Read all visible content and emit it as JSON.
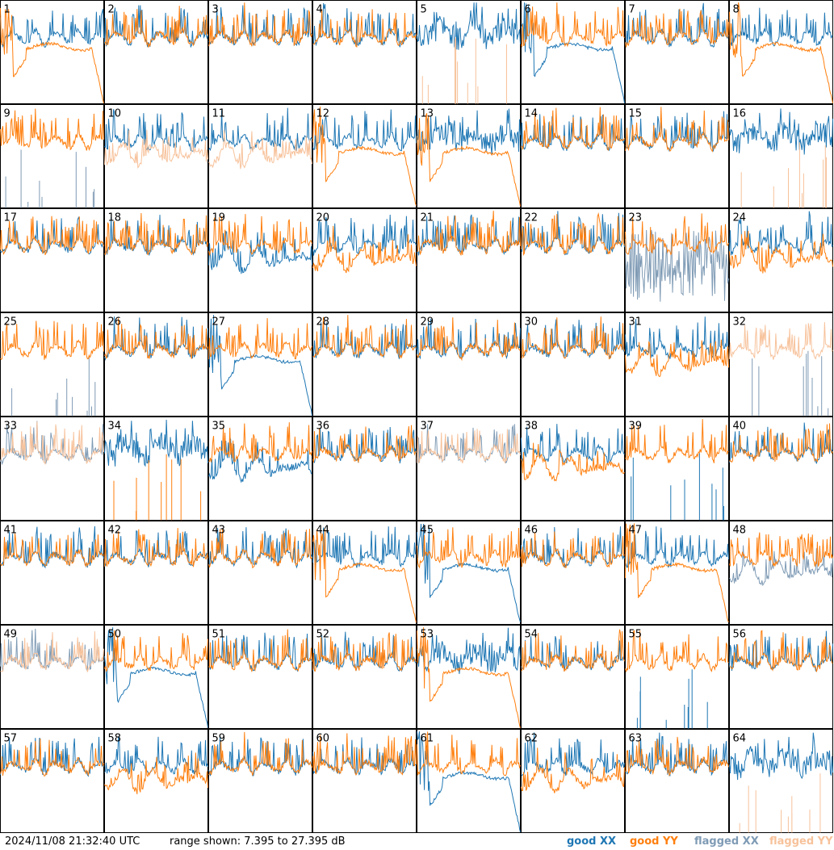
{
  "timestamp": "2024/11/08 21:32:40 UTC",
  "range_text": "range shown: 7.395 to 27.395 dB",
  "legend": {
    "good_xx": "good XX",
    "good_yy": "good YY",
    "flagged_xx": "flagged XX",
    "flagged_yy": "flagged YY"
  },
  "colors": {
    "good_xx": "#1f77b4",
    "good_yy": "#ff7f0e",
    "flagged_xx": "#7f9bb5",
    "flagged_yy": "#f7c29b"
  },
  "chart_data": {
    "type": "line",
    "grid": "8x8 small multiples",
    "ylim_db": [
      7.395,
      27.395
    ],
    "panels": [
      {
        "id": "1",
        "xx": "good",
        "yy": "good",
        "shape_xx": "normal",
        "shape_yy": "decay"
      },
      {
        "id": "2",
        "xx": "good",
        "yy": "good",
        "shape_xx": "normal",
        "shape_yy": "normal"
      },
      {
        "id": "3",
        "xx": "good",
        "yy": "good",
        "shape_xx": "normal",
        "shape_yy": "normal"
      },
      {
        "id": "4",
        "xx": "good",
        "yy": "good",
        "shape_xx": "normal",
        "shape_yy": "normal"
      },
      {
        "id": "5",
        "xx": "good",
        "yy": "flagged",
        "shape_xx": "noisy",
        "shape_yy": "spikes"
      },
      {
        "id": "6",
        "xx": "good",
        "yy": "good",
        "shape_xx": "decay",
        "shape_yy": "normal"
      },
      {
        "id": "7",
        "xx": "good",
        "yy": "good",
        "shape_xx": "normal",
        "shape_yy": "normal"
      },
      {
        "id": "8",
        "xx": "good",
        "yy": "good",
        "shape_xx": "normal",
        "shape_yy": "decay"
      },
      {
        "id": "9",
        "xx": "flagged",
        "yy": "good",
        "shape_xx": "spikes",
        "shape_yy": "normal"
      },
      {
        "id": "10",
        "xx": "good",
        "yy": "flagged",
        "shape_xx": "normal",
        "shape_yy": "low"
      },
      {
        "id": "11",
        "xx": "good",
        "yy": "flagged",
        "shape_xx": "normal",
        "shape_yy": "low"
      },
      {
        "id": "12",
        "xx": "good",
        "yy": "good",
        "shape_xx": "normal",
        "shape_yy": "decay"
      },
      {
        "id": "13",
        "xx": "good",
        "yy": "good",
        "shape_xx": "noisy",
        "shape_yy": "decay"
      },
      {
        "id": "14",
        "xx": "good",
        "yy": "good",
        "shape_xx": "normal",
        "shape_yy": "normal"
      },
      {
        "id": "15",
        "xx": "good",
        "yy": "good",
        "shape_xx": "normal",
        "shape_yy": "normal"
      },
      {
        "id": "16",
        "xx": "good",
        "yy": "flagged",
        "shape_xx": "noisy",
        "shape_yy": "spikes"
      },
      {
        "id": "17",
        "xx": "good",
        "yy": "good",
        "shape_xx": "normal",
        "shape_yy": "normal"
      },
      {
        "id": "18",
        "xx": "good",
        "yy": "good",
        "shape_xx": "normal",
        "shape_yy": "normal"
      },
      {
        "id": "19",
        "xx": "good",
        "yy": "good",
        "shape_xx": "low",
        "shape_yy": "normal"
      },
      {
        "id": "20",
        "xx": "good",
        "yy": "good",
        "shape_xx": "normal",
        "shape_yy": "low"
      },
      {
        "id": "21",
        "xx": "good",
        "yy": "good",
        "shape_xx": "normal",
        "shape_yy": "normal"
      },
      {
        "id": "22",
        "xx": "good",
        "yy": "good",
        "shape_xx": "normal",
        "shape_yy": "normal"
      },
      {
        "id": "23",
        "xx": "flagged",
        "yy": "good",
        "shape_xx": "band",
        "shape_yy": "normal"
      },
      {
        "id": "24",
        "xx": "good",
        "yy": "good",
        "shape_xx": "normal",
        "shape_yy": "low"
      },
      {
        "id": "25",
        "xx": "flagged",
        "yy": "good",
        "shape_xx": "spikes",
        "shape_yy": "normal"
      },
      {
        "id": "26",
        "xx": "good",
        "yy": "good",
        "shape_xx": "normal",
        "shape_yy": "normal"
      },
      {
        "id": "27",
        "xx": "good",
        "yy": "good",
        "shape_xx": "decay",
        "shape_yy": "normal"
      },
      {
        "id": "28",
        "xx": "good",
        "yy": "good",
        "shape_xx": "normal",
        "shape_yy": "normal"
      },
      {
        "id": "29",
        "xx": "good",
        "yy": "good",
        "shape_xx": "normal",
        "shape_yy": "normal"
      },
      {
        "id": "30",
        "xx": "good",
        "yy": "good",
        "shape_xx": "normal",
        "shape_yy": "normal"
      },
      {
        "id": "31",
        "xx": "good",
        "yy": "good",
        "shape_xx": "normal",
        "shape_yy": "low"
      },
      {
        "id": "32",
        "xx": "flagged",
        "yy": "flagged",
        "shape_xx": "spikes",
        "shape_yy": "normal"
      },
      {
        "id": "33",
        "xx": "flagged",
        "yy": "flagged",
        "shape_xx": "normal",
        "shape_yy": "normal"
      },
      {
        "id": "34",
        "xx": "good",
        "yy": "good",
        "shape_xx": "noisy",
        "shape_yy": "spikes"
      },
      {
        "id": "35",
        "xx": "good",
        "yy": "good",
        "shape_xx": "low",
        "shape_yy": "normal"
      },
      {
        "id": "36",
        "xx": "good",
        "yy": "good",
        "shape_xx": "normal",
        "shape_yy": "normal"
      },
      {
        "id": "37",
        "xx": "flagged",
        "yy": "flagged",
        "shape_xx": "normal",
        "shape_yy": "normal"
      },
      {
        "id": "38",
        "xx": "good",
        "yy": "good",
        "shape_xx": "normal",
        "shape_yy": "low"
      },
      {
        "id": "39",
        "xx": "good",
        "yy": "good",
        "shape_xx": "spikes",
        "shape_yy": "normal"
      },
      {
        "id": "40",
        "xx": "good",
        "yy": "good",
        "shape_xx": "normal",
        "shape_yy": "normal"
      },
      {
        "id": "41",
        "xx": "good",
        "yy": "good",
        "shape_xx": "normal",
        "shape_yy": "normal"
      },
      {
        "id": "42",
        "xx": "good",
        "yy": "good",
        "shape_xx": "normal",
        "shape_yy": "normal"
      },
      {
        "id": "43",
        "xx": "good",
        "yy": "good",
        "shape_xx": "normal",
        "shape_yy": "normal"
      },
      {
        "id": "44",
        "xx": "good",
        "yy": "good",
        "shape_xx": "normal",
        "shape_yy": "decay"
      },
      {
        "id": "45",
        "xx": "good",
        "yy": "good",
        "shape_xx": "decay",
        "shape_yy": "normal"
      },
      {
        "id": "46",
        "xx": "good",
        "yy": "good",
        "shape_xx": "normal",
        "shape_yy": "normal"
      },
      {
        "id": "47",
        "xx": "good",
        "yy": "good",
        "shape_xx": "normal",
        "shape_yy": "decay"
      },
      {
        "id": "48",
        "xx": "flagged",
        "yy": "good",
        "shape_xx": "low",
        "shape_yy": "normal"
      },
      {
        "id": "49",
        "xx": "flagged",
        "yy": "flagged",
        "shape_xx": "normal",
        "shape_yy": "normal"
      },
      {
        "id": "50",
        "xx": "good",
        "yy": "good",
        "shape_xx": "decay",
        "shape_yy": "normal"
      },
      {
        "id": "51",
        "xx": "good",
        "yy": "good",
        "shape_xx": "normal",
        "shape_yy": "normal"
      },
      {
        "id": "52",
        "xx": "good",
        "yy": "good",
        "shape_xx": "normal",
        "shape_yy": "normal"
      },
      {
        "id": "53",
        "xx": "good",
        "yy": "good",
        "shape_xx": "noisy",
        "shape_yy": "decay"
      },
      {
        "id": "54",
        "xx": "good",
        "yy": "good",
        "shape_xx": "normal",
        "shape_yy": "normal"
      },
      {
        "id": "55",
        "xx": "good",
        "yy": "good",
        "shape_xx": "spikes",
        "shape_yy": "normal"
      },
      {
        "id": "56",
        "xx": "good",
        "yy": "good",
        "shape_xx": "normal",
        "shape_yy": "normal"
      },
      {
        "id": "57",
        "xx": "good",
        "yy": "good",
        "shape_xx": "normal",
        "shape_yy": "normal"
      },
      {
        "id": "58",
        "xx": "good",
        "yy": "good",
        "shape_xx": "normal",
        "shape_yy": "low"
      },
      {
        "id": "59",
        "xx": "good",
        "yy": "good",
        "shape_xx": "normal",
        "shape_yy": "normal"
      },
      {
        "id": "60",
        "xx": "good",
        "yy": "good",
        "shape_xx": "normal",
        "shape_yy": "normal"
      },
      {
        "id": "61",
        "xx": "good",
        "yy": "good",
        "shape_xx": "decay",
        "shape_yy": "normal"
      },
      {
        "id": "62",
        "xx": "good",
        "yy": "good",
        "shape_xx": "normal",
        "shape_yy": "low"
      },
      {
        "id": "63",
        "xx": "good",
        "yy": "good",
        "shape_xx": "normal",
        "shape_yy": "normal"
      },
      {
        "id": "64",
        "xx": "good",
        "yy": "flagged",
        "shape_xx": "noisy",
        "shape_yy": "spikes"
      }
    ]
  }
}
